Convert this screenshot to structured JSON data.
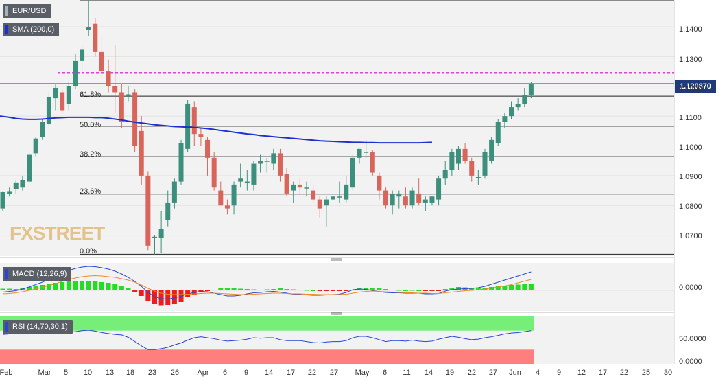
{
  "symbol": "EUR/USD",
  "indicators": {
    "sma": "SMA (200,0)",
    "macd": "MACD (12,26,9)",
    "rsi": "RSI (14,70,30,1)"
  },
  "last_price": "1.120870",
  "watermark": {
    "a": "FX",
    "b": "STREET"
  },
  "y_ticks": [
    "1.1400",
    "1.1300",
    "1.1200",
    "1.1100",
    "1.1000",
    "1.0900",
    "1.0800",
    "1.0700"
  ],
  "macd_ticks": [
    "0.0000"
  ],
  "rsi_ticks": [
    "50.0000",
    "0.0000"
  ],
  "x_ticks": [
    "Feb",
    "Mar",
    "5",
    "10",
    "13",
    "18",
    "23",
    "26",
    "Apr",
    "6",
    "9",
    "14",
    "17",
    "22",
    "27",
    "May",
    "6",
    "11",
    "14",
    "19",
    "22",
    "27",
    "Jun",
    "4",
    "9",
    "12",
    "17",
    "22",
    "25",
    "30"
  ],
  "fib_labels": [
    "61.8%",
    "50.0%",
    "38.2%",
    "23.6%",
    "0.0%"
  ],
  "colors": {
    "up": "#3c8f7c",
    "down": "#d9655a",
    "sma": "#1c2fcf",
    "resistance": "#e23fe0",
    "macd_line": "#2646d8",
    "signal_line": "#f08a24",
    "hist_up": "#22dd22",
    "hist_down": "#ee1c1c",
    "rsi_over": "#77ee77",
    "rsi_under": "#ff7f7f"
  },
  "chart_data": [
    {
      "type": "candlestick",
      "title": "EUR/USD",
      "ylim": [
        1.063,
        1.149
      ],
      "fib_levels": [
        {
          "label": "61.8%",
          "value": 1.1167
        },
        {
          "label": "50.0%",
          "value": 1.1066
        },
        {
          "label": "38.2%",
          "value": 1.0964
        },
        {
          "label": "23.6%",
          "value": 1.0838
        },
        {
          "label": "0.0%",
          "value": 1.0636
        }
      ],
      "resistance": 1.1245,
      "last_price": 1.12087,
      "candles": [
        [
          1.079,
          1.0848,
          1.078,
          1.0846
        ],
        [
          1.084,
          1.086,
          1.083,
          1.0848
        ],
        [
          1.0855,
          1.0885,
          1.084,
          1.0877
        ],
        [
          1.086,
          1.09,
          1.085,
          1.0886
        ],
        [
          1.088,
          1.098,
          1.0875,
          1.097
        ],
        [
          1.0975,
          1.103,
          1.0965,
          1.1025
        ],
        [
          1.103,
          1.109,
          1.102,
          1.1081
        ],
        [
          1.1075,
          1.118,
          1.1065,
          1.1165
        ],
        [
          1.116,
          1.121,
          1.112,
          1.1195
        ],
        [
          1.118,
          1.119,
          1.111,
          1.112
        ],
        [
          1.114,
          1.1215,
          1.112,
          1.12
        ],
        [
          1.12,
          1.131,
          1.119,
          1.1285
        ],
        [
          1.1285,
          1.1335,
          1.125,
          1.1323
        ],
        [
          1.139,
          1.149,
          1.137,
          1.14
        ],
        [
          1.141,
          1.143,
          1.13,
          1.1315
        ],
        [
          1.1315,
          1.1365,
          1.123,
          1.125
        ],
        [
          1.125,
          1.129,
          1.118,
          1.12
        ],
        [
          1.12,
          1.134,
          1.111,
          1.118
        ],
        [
          1.118,
          1.121,
          1.106,
          1.108
        ],
        [
          1.1163,
          1.12,
          1.115,
          1.1173
        ],
        [
          1.118,
          1.119,
          1.098,
          1.1
        ],
        [
          1.105,
          1.11,
          1.087,
          1.09
        ],
        [
          1.09,
          1.0915,
          1.065,
          1.0665
        ],
        [
          1.069,
          1.07,
          1.0636,
          1.0695
        ],
        [
          1.069,
          1.078,
          1.064,
          1.072
        ],
        [
          1.075,
          1.085,
          1.073,
          1.081
        ],
        [
          1.081,
          1.089,
          1.079,
          1.088
        ],
        [
          1.088,
          1.102,
          1.087,
          1.101
        ],
        [
          1.099,
          1.1155,
          1.098,
          1.1142
        ],
        [
          1.113,
          1.115,
          1.1,
          1.104
        ],
        [
          1.104,
          1.106,
          1.1,
          1.103
        ],
        [
          1.102,
          1.103,
          1.09,
          1.096
        ],
        [
          1.096,
          1.098,
          1.085,
          1.086
        ],
        [
          1.085,
          1.088,
          1.08,
          1.08
        ],
        [
          1.08,
          1.082,
          1.077,
          1.079
        ],
        [
          1.08,
          1.088,
          1.077,
          1.087
        ],
        [
          1.088,
          1.094,
          1.086,
          1.089
        ],
        [
          1.088,
          1.092,
          1.085,
          1.088
        ],
        [
          1.087,
          1.095,
          1.085,
          1.094
        ],
        [
          1.094,
          1.097,
          1.091,
          1.095
        ],
        [
          1.095,
          1.096,
          1.091,
          1.095
        ],
        [
          1.094,
          1.099,
          1.092,
          1.0975
        ],
        [
          1.0975,
          1.099,
          1.088,
          1.09
        ],
        [
          1.0905,
          1.0925,
          1.083,
          1.084
        ],
        [
          1.085,
          1.088,
          1.081,
          1.087
        ],
        [
          1.087,
          1.089,
          1.084,
          1.086
        ],
        [
          1.086,
          1.088,
          1.083,
          1.086
        ],
        [
          1.085,
          1.087,
          1.081,
          1.082
        ],
        [
          1.082,
          1.083,
          1.076,
          1.079
        ],
        [
          1.08,
          1.083,
          1.073,
          1.082
        ],
        [
          1.082,
          1.084,
          1.081,
          1.083
        ],
        [
          1.083,
          1.088,
          1.081,
          1.083
        ],
        [
          1.082,
          1.09,
          1.081,
          1.087
        ],
        [
          1.086,
          1.097,
          1.085,
          1.096
        ],
        [
          1.096,
          1.099,
          1.094,
          1.099
        ],
        [
          1.098,
          1.102,
          1.096,
          1.098
        ],
        [
          1.098,
          1.0985,
          1.09,
          1.091
        ],
        [
          1.09,
          1.091,
          1.082,
          1.085
        ],
        [
          1.085,
          1.086,
          1.079,
          1.08
        ],
        [
          1.08,
          1.085,
          1.077,
          1.084
        ],
        [
          1.083,
          1.085,
          1.079,
          1.084
        ],
        [
          1.083,
          1.086,
          1.079,
          1.08
        ],
        [
          1.08,
          1.086,
          1.079,
          1.085
        ],
        [
          1.084,
          1.089,
          1.08,
          1.081
        ],
        [
          1.081,
          1.083,
          1.078,
          1.082
        ],
        [
          1.081,
          1.083,
          1.08,
          1.083
        ],
        [
          1.082,
          1.09,
          1.08,
          1.089
        ],
        [
          1.089,
          1.095,
          1.087,
          1.092
        ],
        [
          1.092,
          1.099,
          1.09,
          1.098
        ],
        [
          1.094,
          1.1,
          1.092,
          1.099
        ],
        [
          1.099,
          1.101,
          1.094,
          1.095
        ],
        [
          1.095,
          1.096,
          1.088,
          1.09
        ],
        [
          1.0895,
          1.092,
          1.087,
          1.0895
        ],
        [
          1.09,
          1.099,
          1.089,
          1.098
        ],
        [
          1.095,
          1.103,
          1.094,
          1.102
        ],
        [
          1.101,
          1.109,
          1.1,
          1.108
        ],
        [
          1.108,
          1.111,
          1.106,
          1.11
        ],
        [
          1.11,
          1.115,
          1.109,
          1.113
        ],
        [
          1.113,
          1.116,
          1.112,
          1.114
        ],
        [
          1.114,
          1.1195,
          1.113,
          1.117
        ],
        [
          1.117,
          1.1215,
          1.116,
          1.1209
        ]
      ],
      "sma200": [
        1.11,
        1.1096,
        1.1092,
        1.109,
        1.1089,
        1.1089,
        1.109,
        1.1092,
        1.1094,
        1.1095,
        1.1096,
        1.1096,
        1.1096,
        1.1096,
        1.1095,
        1.1095,
        1.1093,
        1.109,
        1.1087,
        1.1083,
        1.108,
        1.1077,
        1.1074,
        1.1071,
        1.1069,
        1.1067,
        1.1065,
        1.1064,
        1.1063,
        1.1062,
        1.106,
        1.1058,
        1.1055,
        1.1052,
        1.1049,
        1.1046,
        1.1043,
        1.104,
        1.1038,
        1.1035,
        1.1033,
        1.1031,
        1.1029,
        1.1027,
        1.1025,
        1.1023,
        1.1021,
        1.1019,
        1.1017,
        1.1016,
        1.1015,
        1.1014,
        1.1013,
        1.1012,
        1.1012,
        1.1011,
        1.1011,
        1.101,
        1.101,
        1.101,
        1.101,
        1.101,
        1.101,
        1.101,
        1.1011,
        1.1012
      ]
    },
    {
      "type": "bar+line",
      "title": "MACD (12,26,9)",
      "ylim": [
        -0.006,
        0.008
      ],
      "histogram": [
        0.0005,
        0.0005,
        0.0004,
        0.0006,
        0.001,
        0.0013,
        0.0016,
        0.0019,
        0.0022,
        0.0024,
        0.0026,
        0.0028,
        0.0028,
        0.0027,
        0.0026,
        0.0024,
        0.0022,
        0.0018,
        0.0012,
        0.0006,
        -0.0004,
        -0.0016,
        -0.003,
        -0.004,
        -0.0045,
        -0.0044,
        -0.004,
        -0.0034,
        -0.002,
        -0.0012,
        -0.0006,
        -0.0002,
        0.0002,
        0.0006,
        0.0006,
        0.0006,
        0.0005,
        0.0004,
        0.0003,
        0.0002,
        0.0003,
        0.0004,
        0.0006,
        0.0004,
        0.0003,
        0.0002,
        0.0001,
        0.0,
        -0.0001,
        -0.0002,
        -0.0002,
        -0.0002,
        -0.0001,
        0.0002,
        0.0006,
        0.0008,
        0.0008,
        0.0006,
        0.0004,
        0.0002,
        0.0001,
        0.0,
        0.0001,
        0.0,
        -0.0002,
        -0.0002,
        -0.0001,
        0.0004,
        0.0008,
        0.001,
        0.0009,
        0.0008,
        0.0006,
        0.0008,
        0.001,
        0.0012,
        0.0014,
        0.0016,
        0.0017,
        0.0019,
        0.002
      ],
      "macd": [
        -0.0005,
        -0.0003,
        -0.0001,
        0.0004,
        0.001,
        0.0017,
        0.0024,
        0.0032,
        0.0042,
        0.005,
        0.0058,
        0.0064,
        0.0068,
        0.007,
        0.0069,
        0.0066,
        0.0062,
        0.0056,
        0.0048,
        0.0038,
        0.0026,
        0.0012,
        -0.0006,
        -0.0018,
        -0.0024,
        -0.0025,
        -0.0022,
        -0.0017,
        -0.001,
        -0.0006,
        -0.0003,
        -0.0004,
        -0.0008,
        -0.0012,
        -0.0016,
        -0.0016,
        -0.0014,
        -0.001,
        -0.0007,
        -0.0006,
        -0.0004,
        -0.0003,
        -0.0005,
        -0.0008,
        -0.0011,
        -0.0012,
        -0.0013,
        -0.0014,
        -0.0014,
        -0.0013,
        -0.0012,
        -0.0011,
        -0.0006,
        0.0002,
        0.0004,
        0.0003,
        0.0,
        -0.0004,
        -0.0006,
        -0.0007,
        -0.0007,
        -0.0008,
        -0.0008,
        -0.0008,
        -0.001,
        -0.001,
        -0.0009,
        -0.0002,
        0.0002,
        0.0004,
        0.0005,
        0.0006,
        0.0008,
        0.0012,
        0.0018,
        0.0024,
        0.003,
        0.0036,
        0.0042,
        0.0048,
        0.0054
      ],
      "signal": [
        -0.001,
        -0.0009,
        -0.0007,
        -0.0004,
        0.0,
        0.0004,
        0.0009,
        0.0014,
        0.002,
        0.0026,
        0.0032,
        0.0036,
        0.004,
        0.0042,
        0.0043,
        0.0042,
        0.004,
        0.0038,
        0.0034,
        0.003,
        0.0024,
        0.0016,
        0.0006,
        -0.0002,
        -0.0008,
        -0.0011,
        -0.0012,
        -0.0012,
        -0.0011,
        -0.001,
        -0.0009,
        -0.0008,
        -0.0008,
        -0.0009,
        -0.001,
        -0.0011,
        -0.0012,
        -0.0012,
        -0.0011,
        -0.001,
        -0.0009,
        -0.0008,
        -0.0008,
        -0.0009,
        -0.001,
        -0.001,
        -0.0011,
        -0.0011,
        -0.0012,
        -0.0012,
        -0.0012,
        -0.0012,
        -0.0011,
        -0.0008,
        -0.0005,
        -0.0003,
        -0.0002,
        -0.0003,
        -0.0004,
        -0.0005,
        -0.0006,
        -0.0007,
        -0.0007,
        -0.0008,
        -0.0008,
        -0.0009,
        -0.0009,
        -0.0007,
        -0.0005,
        -0.0003,
        -0.0001,
        0.0,
        0.0002,
        0.0004,
        0.0007,
        0.001,
        0.0013,
        0.0017,
        0.0022,
        0.0027,
        0.0032
      ]
    },
    {
      "type": "line",
      "title": "RSI (14,70,30,1)",
      "ylim": [
        0,
        100
      ],
      "overbought": 70,
      "oversold": 30,
      "values": [
        62,
        63,
        63,
        64,
        65,
        66,
        66,
        67,
        68,
        68,
        67,
        68,
        70,
        71,
        69,
        66,
        64,
        62,
        61,
        56,
        47,
        38,
        30,
        30,
        32,
        35,
        40,
        44,
        50,
        55,
        57,
        55,
        53,
        50,
        48,
        49,
        50,
        52,
        55,
        54,
        55,
        55,
        51,
        49,
        49,
        49,
        47,
        45,
        44,
        46,
        47,
        47,
        49,
        55,
        58,
        58,
        55,
        51,
        47,
        49,
        49,
        48,
        50,
        48,
        47,
        48,
        52,
        55,
        58,
        56,
        53,
        51,
        52,
        55,
        57,
        60,
        63,
        65,
        66,
        68,
        70
      ]
    }
  ]
}
